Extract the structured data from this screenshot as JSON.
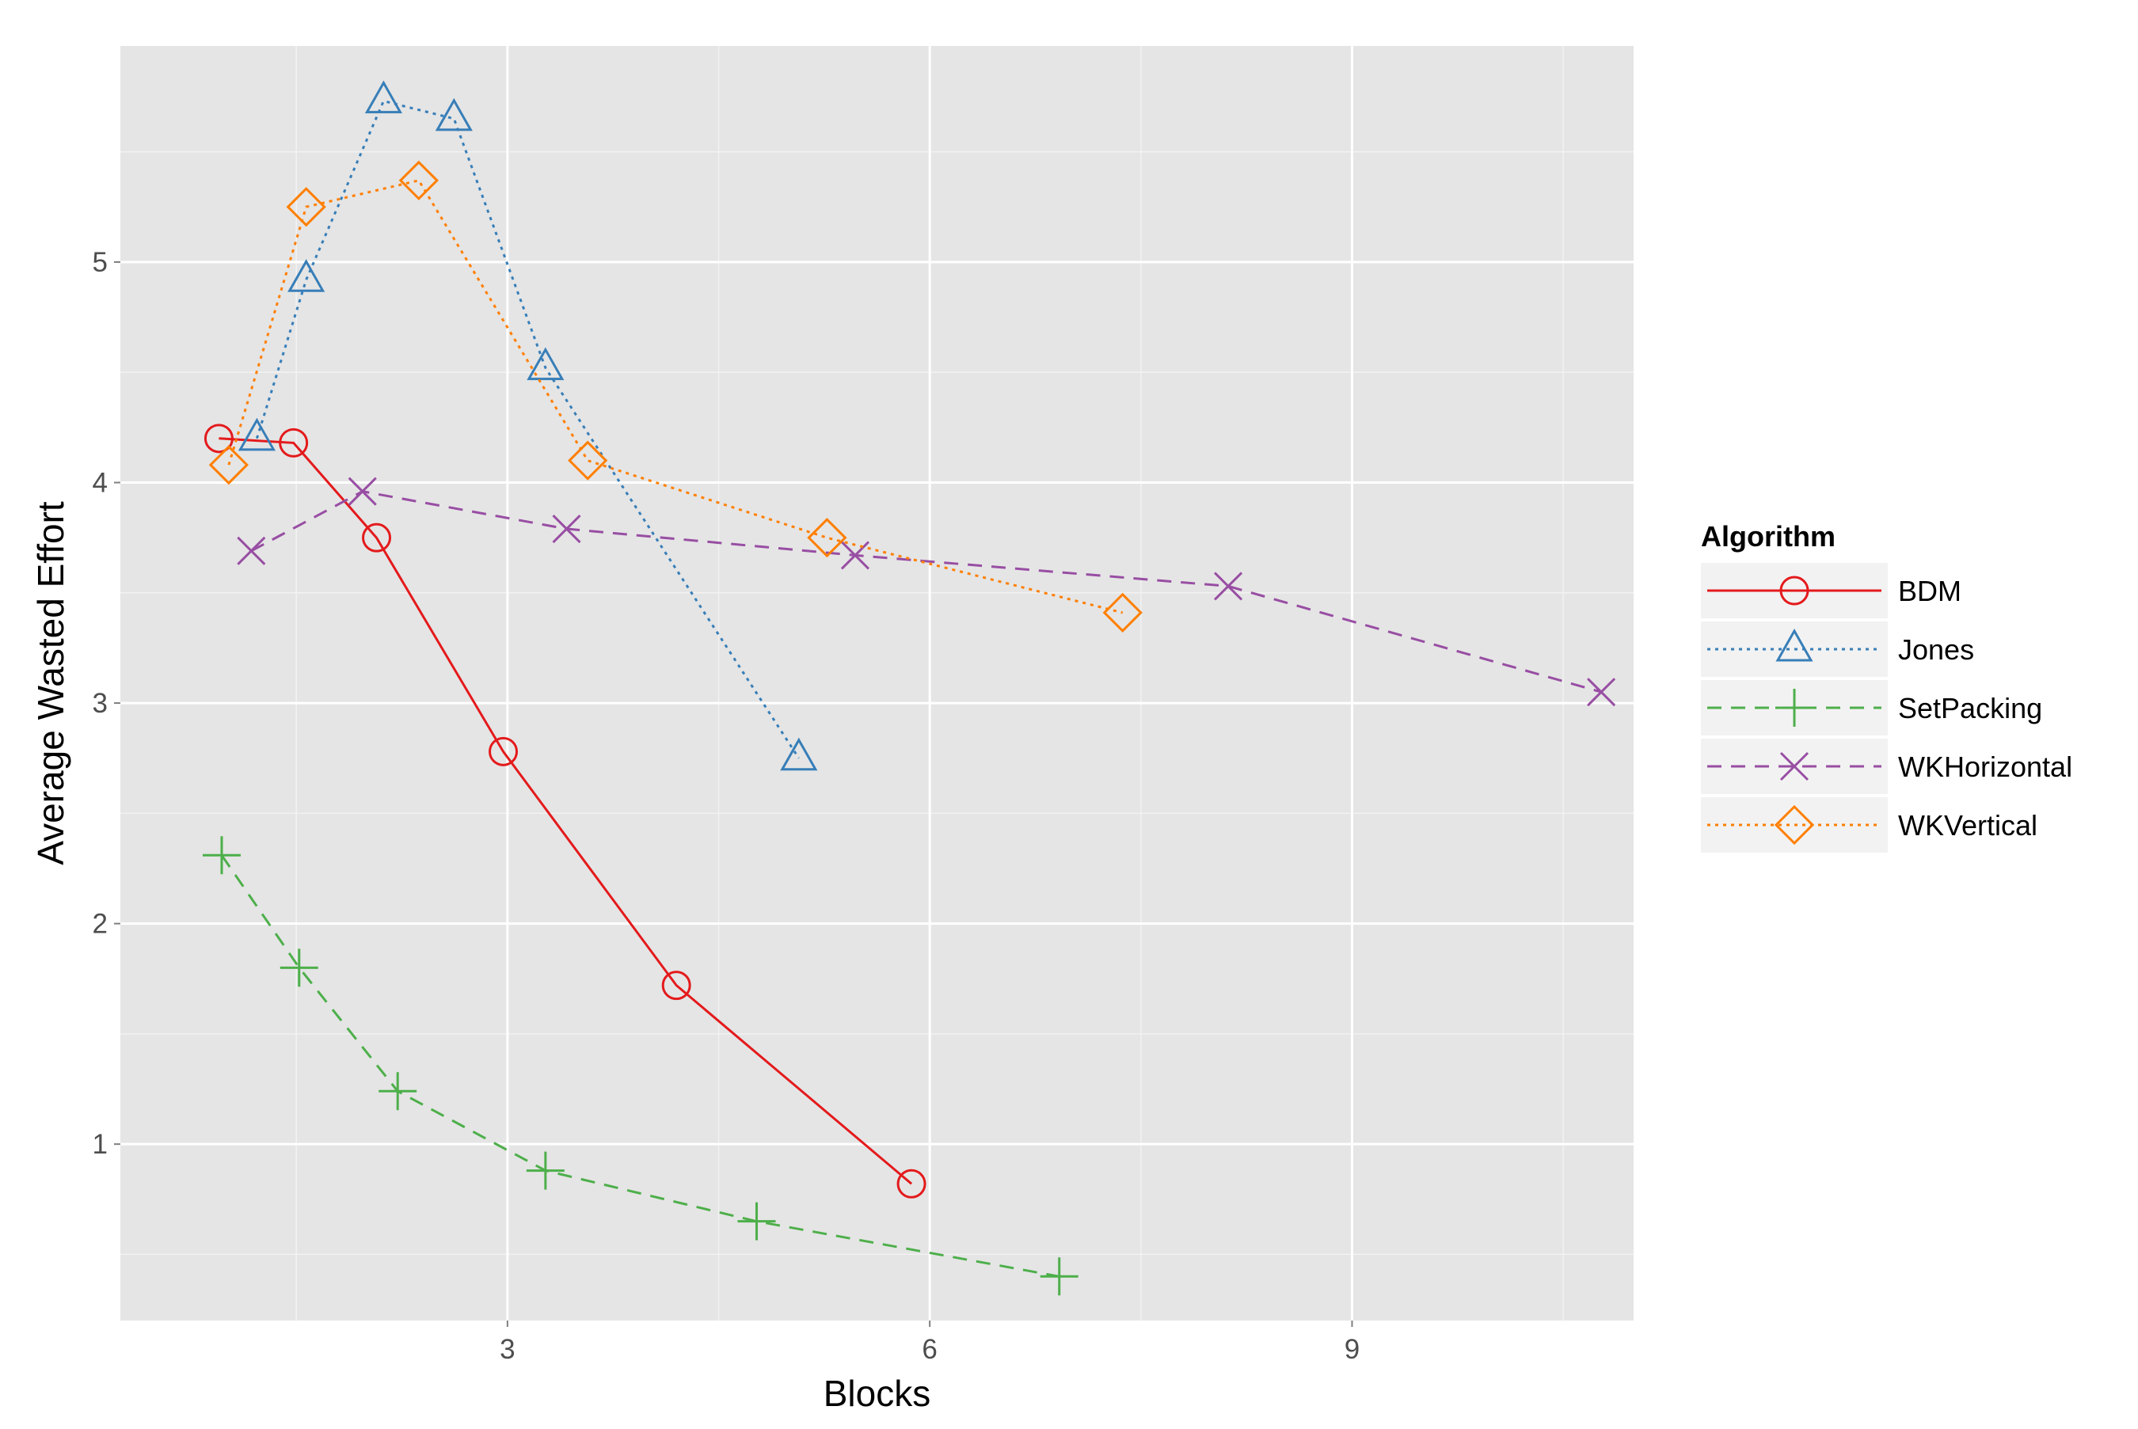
{
  "chart_data": {
    "type": "line",
    "title": "",
    "xlabel": "Blocks",
    "ylabel": "Average Wasted Effort",
    "xlim": [
      0.25,
      11.0
    ],
    "ylim": [
      0.2,
      5.98
    ],
    "x_ticks": [
      3,
      6,
      9
    ],
    "x_tick_labels": [
      "3",
      "6",
      "9"
    ],
    "x_minor_ticks": [
      1.5,
      4.5,
      7.5,
      10.5
    ],
    "y_ticks": [
      1,
      2,
      3,
      4,
      5
    ],
    "y_tick_labels": [
      "1",
      "2",
      "3",
      "4",
      "5"
    ],
    "y_minor_ticks": [
      0.5,
      1.5,
      2.5,
      3.5,
      4.5,
      5.5
    ],
    "grid": true,
    "panel_background": "#e5e5e5",
    "grid_color": "#ffffff",
    "legend": {
      "title": "Algorithm",
      "position": "right",
      "key_background": "#f2f2f2"
    },
    "series": [
      {
        "name": "BDM",
        "color": "#e41a1c",
        "linetype": "solid",
        "marker": "circle",
        "points": [
          [
            0.95,
            4.2
          ],
          [
            1.48,
            4.18
          ],
          [
            2.07,
            3.75
          ],
          [
            2.97,
            2.78
          ],
          [
            4.2,
            1.72
          ],
          [
            5.87,
            0.82
          ]
        ]
      },
      {
        "name": "Jones",
        "color": "#377eb8",
        "linetype": "dotted",
        "marker": "triangle",
        "points": [
          [
            1.22,
            4.2
          ],
          [
            1.57,
            4.92
          ],
          [
            2.12,
            5.73
          ],
          [
            2.62,
            5.65
          ],
          [
            3.27,
            4.52
          ],
          [
            5.07,
            2.75
          ]
        ]
      },
      {
        "name": "SetPacking",
        "color": "#4daf4a",
        "linetype": "dashed",
        "marker": "plus",
        "points": [
          [
            0.97,
            2.31
          ],
          [
            1.52,
            1.8
          ],
          [
            2.22,
            1.24
          ],
          [
            3.27,
            0.88
          ],
          [
            4.77,
            0.65
          ],
          [
            6.92,
            0.4
          ]
        ]
      },
      {
        "name": "WKHorizontal",
        "color": "#984ea3",
        "linetype": "dashed",
        "marker": "cross",
        "points": [
          [
            1.18,
            3.69
          ],
          [
            1.97,
            3.96
          ],
          [
            3.42,
            3.79
          ],
          [
            5.47,
            3.67
          ],
          [
            8.12,
            3.53
          ],
          [
            10.77,
            3.05
          ]
        ]
      },
      {
        "name": "WKVertical",
        "color": "#ff7f00",
        "linetype": "dotted",
        "marker": "diamond",
        "points": [
          [
            1.02,
            4.08
          ],
          [
            1.57,
            5.25
          ],
          [
            2.37,
            5.37
          ],
          [
            3.57,
            4.1
          ],
          [
            5.27,
            3.75
          ],
          [
            7.37,
            3.41
          ]
        ]
      }
    ]
  }
}
